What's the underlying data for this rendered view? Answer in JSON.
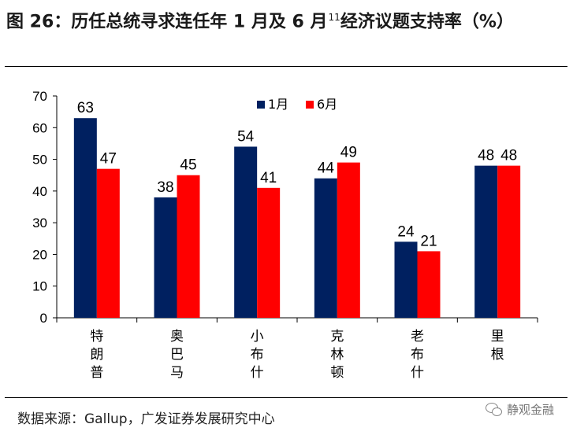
{
  "header": {
    "title": "图 26：历任总统寻求连任年 1 月及 6 月",
    "title_sup": "11",
    "title_rest": "经济议题支持率（%）"
  },
  "source_note": "数据来源：Gallup，广发证券发展研究中心",
  "watermark_text": "静观金融",
  "colors": {
    "jan": "#002060",
    "jun": "#ff0000",
    "axis": "#000000"
  },
  "chart_data": {
    "type": "bar",
    "categories": [
      "特朗普",
      "奥巴马",
      "小布什",
      "克林顿",
      "老布什",
      "里根"
    ],
    "series": [
      {
        "name": "1月",
        "values": [
          63,
          38,
          54,
          44,
          24,
          48
        ]
      },
      {
        "name": "6月",
        "values": [
          47,
          45,
          41,
          49,
          21,
          48
        ]
      }
    ],
    "ylim": [
      0,
      70
    ],
    "yticks": [
      0,
      10,
      20,
      30,
      40,
      50,
      60,
      70
    ],
    "title": "",
    "xlabel": "",
    "ylabel": "",
    "legend_position": "top-center",
    "grid": false,
    "data_labels": true
  }
}
